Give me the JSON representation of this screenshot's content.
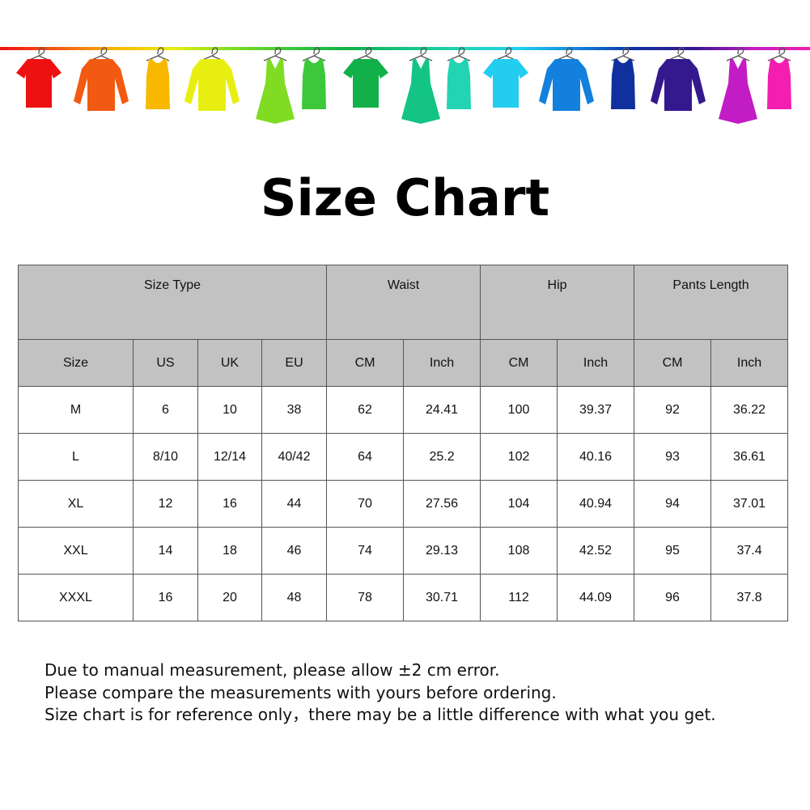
{
  "banner": {
    "icon": "rainbow-clothes-on-hangers",
    "colors": [
      "#ee1111",
      "#f25a12",
      "#f8b800",
      "#e8ee10",
      "#7fdc22",
      "#3cc83a",
      "#12b048",
      "#14c484",
      "#22d4b4",
      "#22cdf0",
      "#1280dc",
      "#10309e",
      "#34188e",
      "#c21cc4",
      "#f41eb0"
    ]
  },
  "title": "Size Chart",
  "table": {
    "groups": [
      "Size Type",
      "Waist",
      "Hip",
      "Pants Length"
    ],
    "columns": [
      "Size",
      "US",
      "UK",
      "EU",
      "CM",
      "Inch",
      "CM",
      "Inch",
      "CM",
      "Inch"
    ],
    "rows": [
      [
        "M",
        "6",
        "10",
        "38",
        "62",
        "24.41",
        "100",
        "39.37",
        "92",
        "36.22"
      ],
      [
        "L",
        "8/10",
        "12/14",
        "40/42",
        "64",
        "25.2",
        "102",
        "40.16",
        "93",
        "36.61"
      ],
      [
        "XL",
        "12",
        "16",
        "44",
        "70",
        "27.56",
        "104",
        "40.94",
        "94",
        "37.01"
      ],
      [
        "XXL",
        "14",
        "18",
        "46",
        "74",
        "29.13",
        "108",
        "42.52",
        "95",
        "37.4"
      ],
      [
        "XXXL",
        "16",
        "20",
        "48",
        "78",
        "30.71",
        "112",
        "44.09",
        "96",
        "37.8"
      ]
    ]
  },
  "notes": [
    "Due to manual measurement, please allow ±2 cm error.",
    "Please compare the measurements with yours before ordering.",
    "Size chart is for reference only，there may be a little difference with what you get."
  ]
}
